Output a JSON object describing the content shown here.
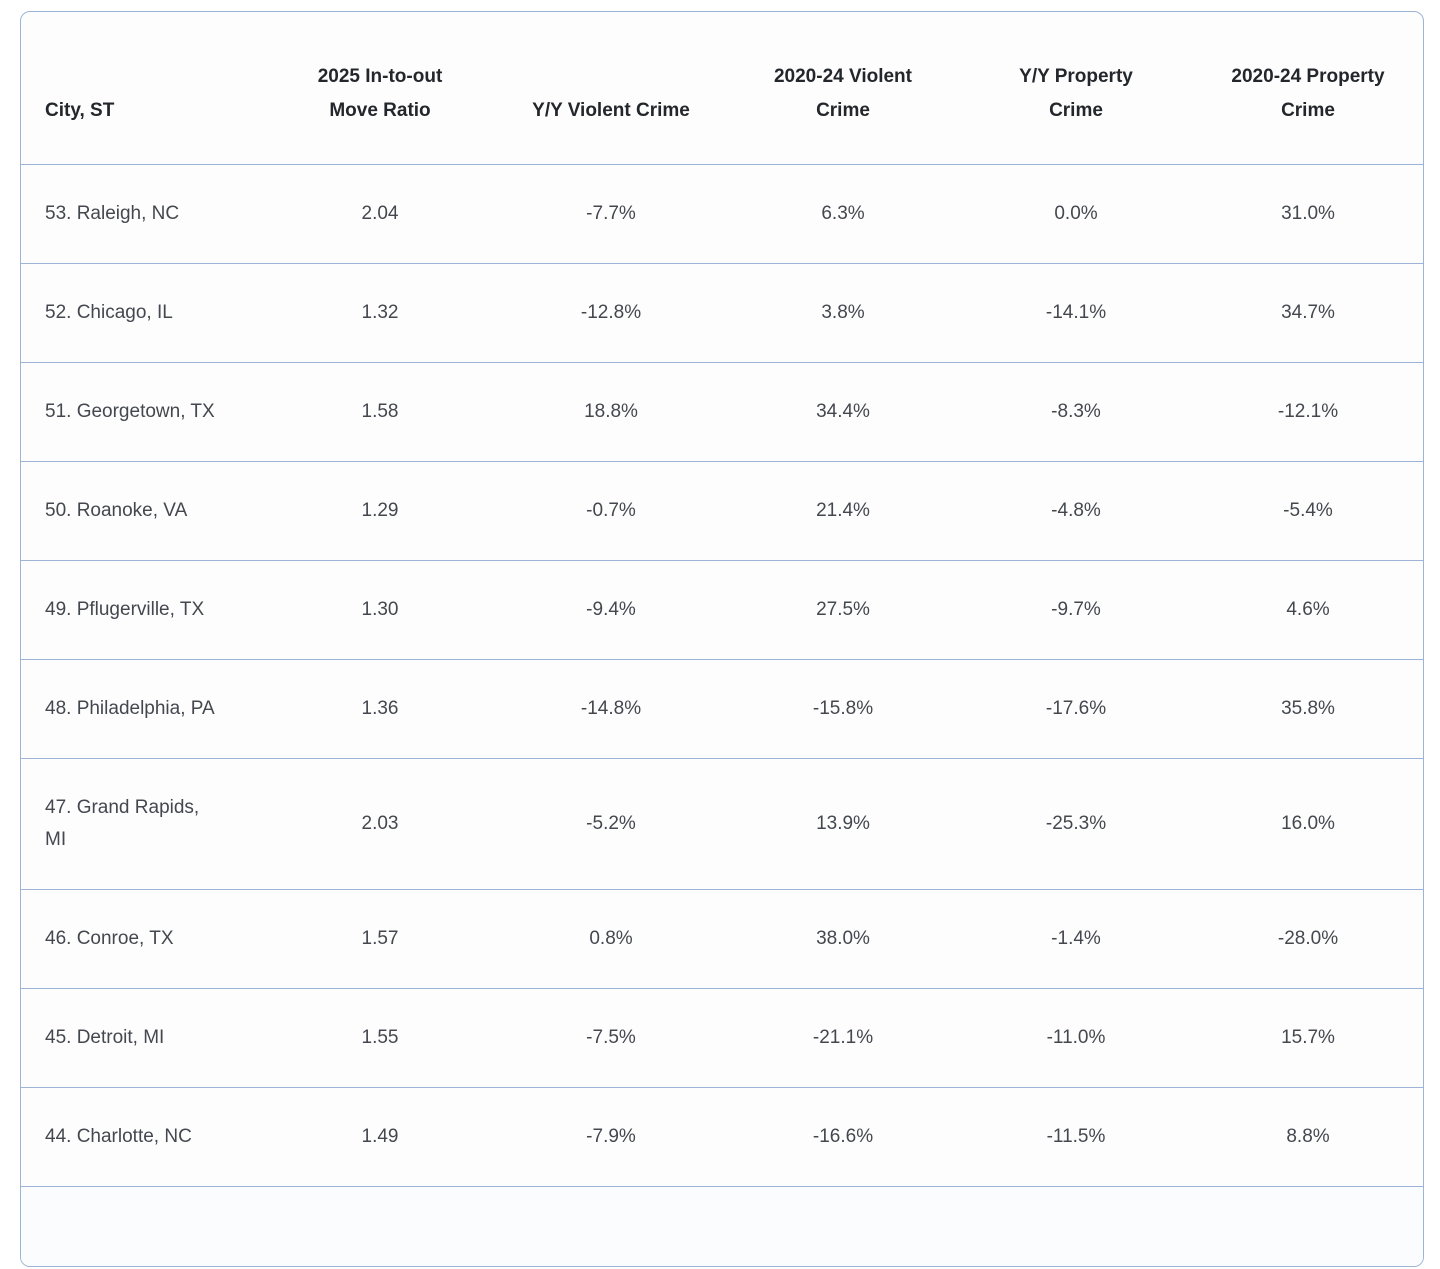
{
  "table": {
    "columns": [
      {
        "id": "city",
        "lines": [
          "City, ST"
        ]
      },
      {
        "id": "move_ratio",
        "lines": [
          "2025 In-to-out",
          "Move Ratio"
        ]
      },
      {
        "id": "yy_violent",
        "lines": [
          "Y/Y Violent Crime"
        ]
      },
      {
        "id": "violent_2020_24",
        "lines": [
          "2020-24 Violent",
          "Crime"
        ]
      },
      {
        "id": "yy_property",
        "lines": [
          "Y/Y Property",
          "Crime"
        ]
      },
      {
        "id": "property_2020_24",
        "lines": [
          "2020-24 Property",
          "Crime"
        ]
      }
    ],
    "rows": [
      {
        "city": "53. Raleigh, NC",
        "move_ratio": "2.04",
        "yy_violent": "-7.7%",
        "violent_2020_24": "6.3%",
        "yy_property": "0.0%",
        "property_2020_24": "31.0%"
      },
      {
        "city": "52. Chicago, IL",
        "move_ratio": "1.32",
        "yy_violent": "-12.8%",
        "violent_2020_24": "3.8%",
        "yy_property": "-14.1%",
        "property_2020_24": "34.7%"
      },
      {
        "city": "51. Georgetown, TX",
        "move_ratio": "1.58",
        "yy_violent": "18.8%",
        "violent_2020_24": "34.4%",
        "yy_property": "-8.3%",
        "property_2020_24": "-12.1%"
      },
      {
        "city": "50. Roanoke, VA",
        "move_ratio": "1.29",
        "yy_violent": "-0.7%",
        "violent_2020_24": "21.4%",
        "yy_property": "-4.8%",
        "property_2020_24": "-5.4%"
      },
      {
        "city": "49. Pflugerville, TX",
        "move_ratio": "1.30",
        "yy_violent": "-9.4%",
        "violent_2020_24": "27.5%",
        "yy_property": "-9.7%",
        "property_2020_24": "4.6%"
      },
      {
        "city": "48. Philadelphia, PA",
        "move_ratio": "1.36",
        "yy_violent": "-14.8%",
        "violent_2020_24": "-15.8%",
        "yy_property": "-17.6%",
        "property_2020_24": "35.8%"
      },
      {
        "city": "47. Grand Rapids, MI",
        "move_ratio": "2.03",
        "yy_violent": "-5.2%",
        "violent_2020_24": "13.9%",
        "yy_property": "-25.3%",
        "property_2020_24": "16.0%"
      },
      {
        "city": "46. Conroe, TX",
        "move_ratio": "1.57",
        "yy_violent": "0.8%",
        "violent_2020_24": "38.0%",
        "yy_property": "-1.4%",
        "property_2020_24": "-28.0%"
      },
      {
        "city": "45. Detroit, MI",
        "move_ratio": "1.55",
        "yy_violent": "-7.5%",
        "violent_2020_24": "-21.1%",
        "yy_property": "-11.0%",
        "property_2020_24": "15.7%"
      },
      {
        "city": "44. Charlotte, NC",
        "move_ratio": "1.49",
        "yy_violent": "-7.9%",
        "violent_2020_24": "-16.6%",
        "yy_property": "-11.5%",
        "property_2020_24": "8.8%"
      }
    ]
  },
  "colors": {
    "border": "#9db4d6",
    "header_text": "#23272b",
    "body_text": "#44484e",
    "card_background": "#fdfdfe"
  }
}
